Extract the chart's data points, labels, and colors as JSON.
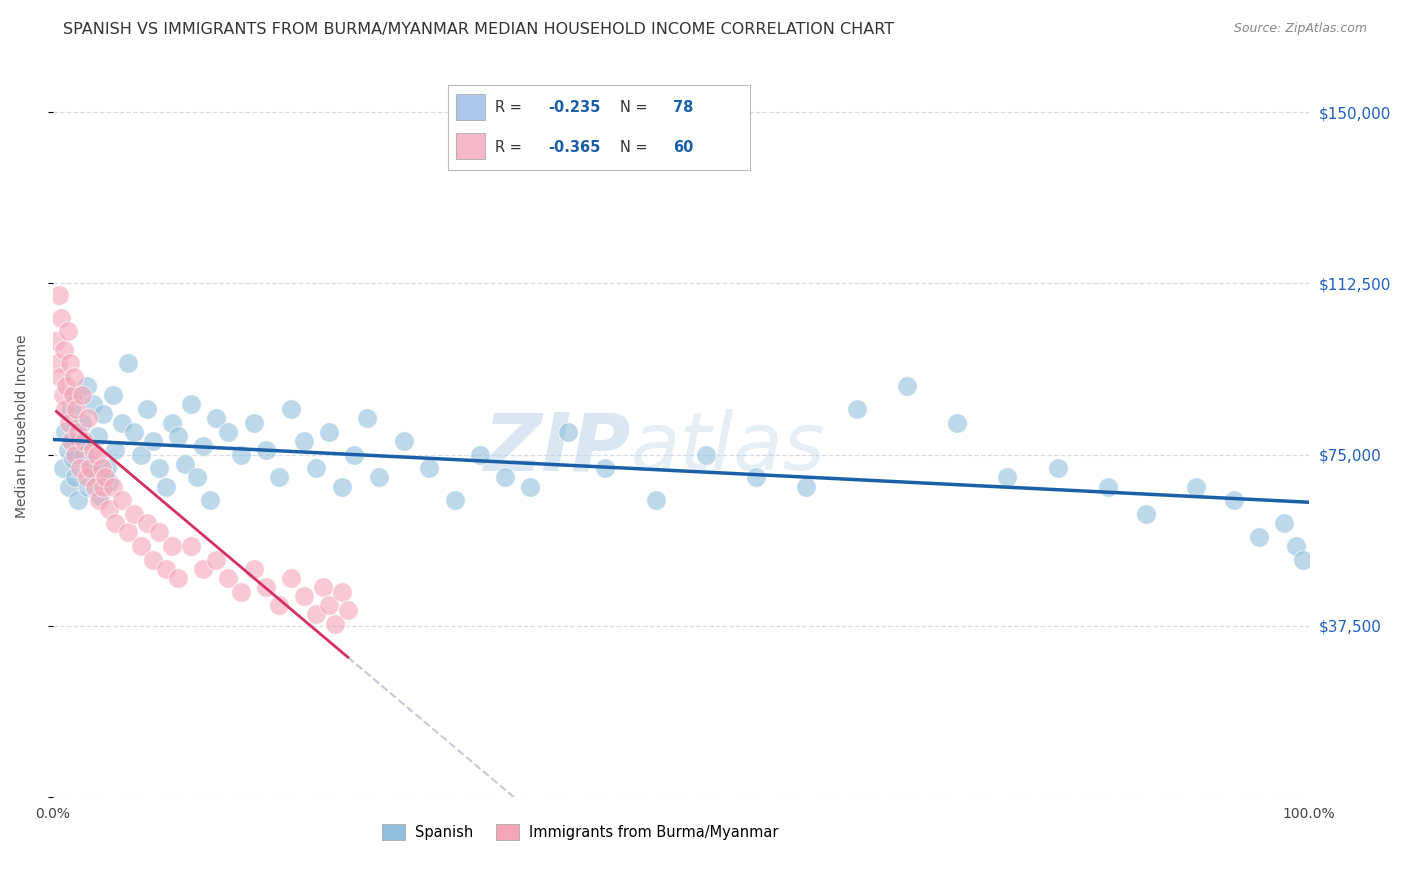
{
  "title": "SPANISH VS IMMIGRANTS FROM BURMA/MYANMAR MEDIAN HOUSEHOLD INCOME CORRELATION CHART",
  "source": "Source: ZipAtlas.com",
  "ylabel": "Median Household Income",
  "watermark_zip": "ZIP",
  "watermark_atlas": "atlas",
  "legend_label_spanish": "Spanish",
  "legend_label_burma": "Immigrants from Burma/Myanmar",
  "yticks": [
    0,
    37500,
    75000,
    112500,
    150000
  ],
  "xlim": [
    0,
    1
  ],
  "ylim": [
    0,
    162500
  ],
  "spanish_color": "#91bfdb",
  "burma_color": "#f4a6b8",
  "trend_spanish_color": "#1a5fa8",
  "trend_burma_color": "#d43060",
  "trend_dashed_color": "#c8c8d8",
  "grid_color": "#d5dce8",
  "background_color": "#ffffff",
  "r_spanish": "-0.235",
  "n_spanish": "78",
  "r_burma": "-0.365",
  "n_burma": "60",
  "legend_box_color": "#aec6e8",
  "legend_box_color2": "#f4b8c8",
  "spanish_scatter_x": [
    0.008,
    0.01,
    0.012,
    0.013,
    0.015,
    0.016,
    0.018,
    0.019,
    0.02,
    0.022,
    0.023,
    0.025,
    0.027,
    0.028,
    0.03,
    0.032,
    0.034,
    0.036,
    0.038,
    0.04,
    0.043,
    0.045,
    0.048,
    0.05,
    0.055,
    0.06,
    0.065,
    0.07,
    0.075,
    0.08,
    0.085,
    0.09,
    0.095,
    0.1,
    0.105,
    0.11,
    0.115,
    0.12,
    0.125,
    0.13,
    0.14,
    0.15,
    0.16,
    0.17,
    0.18,
    0.19,
    0.2,
    0.21,
    0.22,
    0.23,
    0.24,
    0.25,
    0.26,
    0.28,
    0.3,
    0.32,
    0.34,
    0.36,
    0.38,
    0.41,
    0.44,
    0.48,
    0.52,
    0.56,
    0.6,
    0.64,
    0.68,
    0.72,
    0.76,
    0.8,
    0.84,
    0.87,
    0.91,
    0.94,
    0.96,
    0.98,
    0.99,
    0.995
  ],
  "spanish_scatter_y": [
    72000,
    80000,
    76000,
    68000,
    85000,
    74000,
    70000,
    88000,
    65000,
    78000,
    82000,
    75000,
    90000,
    68000,
    73000,
    86000,
    71000,
    79000,
    66000,
    84000,
    72000,
    69000,
    88000,
    76000,
    82000,
    95000,
    80000,
    75000,
    85000,
    78000,
    72000,
    68000,
    82000,
    79000,
    73000,
    86000,
    70000,
    77000,
    65000,
    83000,
    80000,
    75000,
    82000,
    76000,
    70000,
    85000,
    78000,
    72000,
    80000,
    68000,
    75000,
    83000,
    70000,
    78000,
    72000,
    65000,
    75000,
    70000,
    68000,
    80000,
    72000,
    65000,
    75000,
    70000,
    68000,
    85000,
    90000,
    82000,
    70000,
    72000,
    68000,
    62000,
    68000,
    65000,
    57000,
    60000,
    55000,
    52000
  ],
  "burma_scatter_x": [
    0.003,
    0.004,
    0.005,
    0.006,
    0.007,
    0.008,
    0.009,
    0.01,
    0.011,
    0.012,
    0.013,
    0.014,
    0.015,
    0.016,
    0.017,
    0.018,
    0.019,
    0.02,
    0.022,
    0.023,
    0.025,
    0.027,
    0.028,
    0.03,
    0.032,
    0.034,
    0.035,
    0.037,
    0.039,
    0.04,
    0.042,
    0.045,
    0.048,
    0.05,
    0.055,
    0.06,
    0.065,
    0.07,
    0.075,
    0.08,
    0.085,
    0.09,
    0.095,
    0.1,
    0.11,
    0.12,
    0.13,
    0.14,
    0.15,
    0.16,
    0.17,
    0.18,
    0.19,
    0.2,
    0.21,
    0.215,
    0.22,
    0.225,
    0.23,
    0.235
  ],
  "burma_scatter_y": [
    100000,
    95000,
    110000,
    92000,
    105000,
    88000,
    98000,
    85000,
    90000,
    102000,
    82000,
    95000,
    78000,
    88000,
    92000,
    75000,
    85000,
    80000,
    72000,
    88000,
    78000,
    70000,
    83000,
    72000,
    76000,
    68000,
    75000,
    65000,
    72000,
    68000,
    70000,
    63000,
    68000,
    60000,
    65000,
    58000,
    62000,
    55000,
    60000,
    52000,
    58000,
    50000,
    55000,
    48000,
    55000,
    50000,
    52000,
    48000,
    45000,
    50000,
    46000,
    42000,
    48000,
    44000,
    40000,
    46000,
    42000,
    38000,
    45000,
    41000
  ]
}
